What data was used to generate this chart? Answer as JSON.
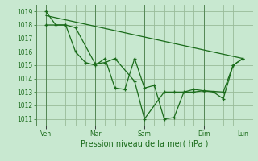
{
  "background_color": "#c8e8d0",
  "grid_color": "#99bb99",
  "line_color": "#1a6b1a",
  "spine_color": "#558855",
  "title": "Pression niveau de la mer( hPa )",
  "ylim": [
    1010.5,
    1019.5
  ],
  "yticks": [
    1011,
    1012,
    1013,
    1014,
    1015,
    1016,
    1017,
    1018,
    1019
  ],
  "xlim": [
    0,
    22
  ],
  "xtick_positions": [
    1,
    6,
    11,
    12,
    17,
    21
  ],
  "xtick_labels": [
    "Ven",
    "Mar",
    "Sam",
    "Dim",
    "Lun",
    ""
  ],
  "xtick_positions2": [
    1,
    6,
    11,
    12,
    17,
    21
  ],
  "day_lines": [
    1,
    6,
    11,
    17,
    21
  ],
  "line1_x": [
    1,
    2,
    3,
    4,
    5,
    6,
    7,
    8,
    9,
    10,
    11,
    12,
    13,
    14,
    15,
    16,
    17,
    18,
    19,
    20,
    21
  ],
  "line1_y": [
    1019,
    1018,
    1018,
    1016,
    1015.2,
    1015,
    1015.5,
    1013.3,
    1013.2,
    1015.5,
    1013.3,
    1013.5,
    1011,
    1011.1,
    1013,
    1013.2,
    1013.1,
    1013.0,
    1012.5,
    1015,
    1015.5
  ],
  "line2_x": [
    1,
    3,
    4,
    6,
    7,
    8,
    10,
    11,
    13,
    14,
    16,
    17,
    19,
    20,
    21
  ],
  "line2_y": [
    1018,
    1018,
    1017.8,
    1015.1,
    1015.2,
    1015.5,
    1013.8,
    1011.0,
    1013.0,
    1013.0,
    1013.0,
    1013.1,
    1013.0,
    1015.0,
    1015.5
  ],
  "line3_x": [
    1,
    21
  ],
  "line3_y": [
    1018.7,
    1015.5
  ]
}
